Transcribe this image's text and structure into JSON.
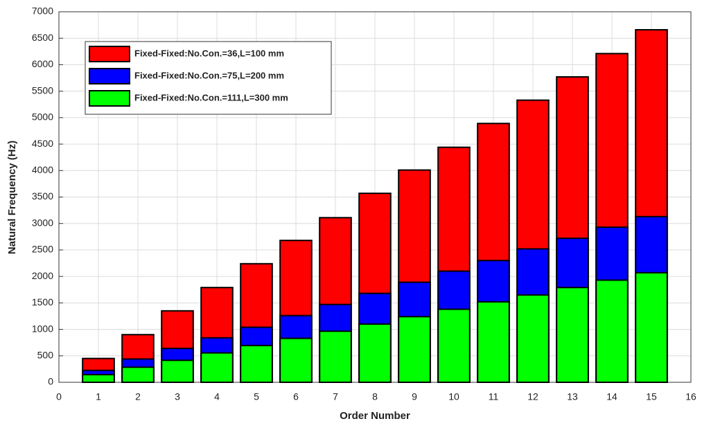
{
  "chart_data": {
    "type": "bar",
    "x_label": "Order Number",
    "y_label": "Natural Frequency (Hz)",
    "x": [
      1,
      2,
      3,
      4,
      5,
      6,
      7,
      8,
      9,
      10,
      11,
      12,
      13,
      14,
      15
    ],
    "series": [
      {
        "name": "Fixed-Fixed:No.Con.=36,L=100 mm",
        "color": "#ff0000",
        "values": [
          450,
          900,
          1350,
          1790,
          2240,
          2680,
          3110,
          3570,
          4010,
          4440,
          4890,
          5330,
          5770,
          6210,
          6660
        ]
      },
      {
        "name": "Fixed-Fixed:No.Con.=75,L=200 mm",
        "color": "#0000ff",
        "values": [
          225,
          440,
          640,
          840,
          1040,
          1260,
          1470,
          1680,
          1890,
          2100,
          2300,
          2520,
          2720,
          2930,
          3130
        ]
      },
      {
        "name": "Fixed-Fixed:No.Con.=111,L=300 mm",
        "color": "#00ff00",
        "values": [
          145,
          285,
          415,
          555,
          695,
          830,
          965,
          1100,
          1240,
          1380,
          1520,
          1650,
          1790,
          1930,
          2070
        ]
      }
    ],
    "bar_width": 0.8,
    "xlim": [
      0,
      16
    ],
    "xticks": [
      0,
      1,
      2,
      3,
      4,
      5,
      6,
      7,
      8,
      9,
      10,
      11,
      12,
      13,
      14,
      15,
      16
    ],
    "ylim": [
      0,
      7000
    ],
    "yticks": [
      0,
      500,
      1000,
      1500,
      2000,
      2500,
      3000,
      3500,
      4000,
      4500,
      5000,
      5500,
      6000,
      6500,
      7000
    ],
    "grid": true,
    "legend": "upper left"
  }
}
